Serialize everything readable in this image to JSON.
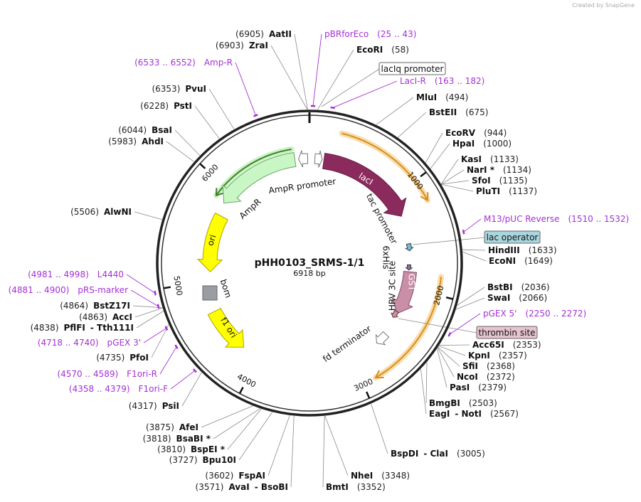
{
  "credit": "Created by SnapGene",
  "plasmid": {
    "name": "pHH0103_SRMS-1/1",
    "size": "6918 bp"
  },
  "ring_ticks": [
    1000,
    2000,
    3000,
    4000,
    5000,
    6000
  ],
  "enzymes": [
    {
      "name": "AatII",
      "site": "(6905)"
    },
    {
      "name": "ZraI",
      "site": "(6903)"
    },
    {
      "name": "PvuI",
      "site": "(6353)"
    },
    {
      "name": "PstI",
      "site": "(6228)"
    },
    {
      "name": "BsaI",
      "site": "(6044)"
    },
    {
      "name": "AhdI",
      "site": "(5983)"
    },
    {
      "name": "AlwNI",
      "site": "(5506)"
    },
    {
      "name": "BstZ17I",
      "site": "(4864)"
    },
    {
      "name": "AccI",
      "site": "(4863)"
    },
    {
      "name": "PflFI",
      "also": "- Tth111I",
      "site": "(4838)"
    },
    {
      "name": "PfoI",
      "site": "(4735)"
    },
    {
      "name": "PsiI",
      "site": "(4317)"
    },
    {
      "name": "AfeI",
      "site": "(3875)"
    },
    {
      "name": "BsaBI *",
      "site": "(3818)"
    },
    {
      "name": "BspEI *",
      "site": "(3810)"
    },
    {
      "name": "Bpu10I",
      "site": "(3727)"
    },
    {
      "name": "FspAI",
      "site": "(3602)"
    },
    {
      "name": "AvaI",
      "also": "- BsoBI",
      "site": "(3571)"
    },
    {
      "name": "EcoRI",
      "site": "(58)"
    },
    {
      "name": "MluI",
      "site": "(494)"
    },
    {
      "name": "BstEII",
      "site": "(675)"
    },
    {
      "name": "EcoRV",
      "site": "(944)"
    },
    {
      "name": "HpaI",
      "site": "(1000)"
    },
    {
      "name": "KasI",
      "site": "(1133)"
    },
    {
      "name": "NarI *",
      "site": "(1134)"
    },
    {
      "name": "SfoI",
      "site": "(1135)"
    },
    {
      "name": "PluTI",
      "site": "(1137)"
    },
    {
      "name": "HindIII",
      "site": "(1633)"
    },
    {
      "name": "EcoNI",
      "site": "(1649)"
    },
    {
      "name": "BstBI",
      "site": "(2036)"
    },
    {
      "name": "SwaI",
      "site": "(2066)"
    },
    {
      "name": "Acc65I",
      "site": "(2353)"
    },
    {
      "name": "KpnI",
      "site": "(2357)"
    },
    {
      "name": "SfiI",
      "site": "(2368)"
    },
    {
      "name": "NcoI",
      "site": "(2372)"
    },
    {
      "name": "PasI",
      "site": "(2379)"
    },
    {
      "name": "BmgBI",
      "site": "(2503)"
    },
    {
      "name": "EagI",
      "also": "- NotI",
      "site": "(2567)"
    },
    {
      "name": "BspDI",
      "also": "- ClaI",
      "site": "(3005)"
    },
    {
      "name": "NheI",
      "site": "(3348)"
    },
    {
      "name": "BmtI",
      "site": "(3352)"
    }
  ],
  "primers": [
    {
      "name": "pBRforEco",
      "range": "(25 .. 43)"
    },
    {
      "name": "Amp-R",
      "range": "(6533 .. 6552)"
    },
    {
      "name": "LacI-R",
      "range": "(163 .. 182)"
    },
    {
      "name": "M13/pUC Reverse",
      "range": "(1510 .. 1532)"
    },
    {
      "name": "L4440",
      "range": "(4981 .. 4998)"
    },
    {
      "name": "pRS-marker",
      "range": "(4881 .. 4900)"
    },
    {
      "name": "pGEX 5'",
      "range": "(2250 .. 2272)"
    },
    {
      "name": "pGEX 3'",
      "range": "(4718 .. 4740)"
    },
    {
      "name": "F1ori-R",
      "range": "(4570 .. 4589)"
    },
    {
      "name": "F1ori-F",
      "range": "(4358 .. 4379)"
    }
  ],
  "boxed_features": [
    "lacIq promoter",
    "lac operator",
    "thrombin site"
  ],
  "features": [
    "lacI",
    "tac promoter",
    "AmpR promoter",
    "AmpR",
    "ori",
    "bom",
    "f1 ori",
    "6xHis",
    "HRV 3C site",
    "GST",
    "fd terminator"
  ]
}
